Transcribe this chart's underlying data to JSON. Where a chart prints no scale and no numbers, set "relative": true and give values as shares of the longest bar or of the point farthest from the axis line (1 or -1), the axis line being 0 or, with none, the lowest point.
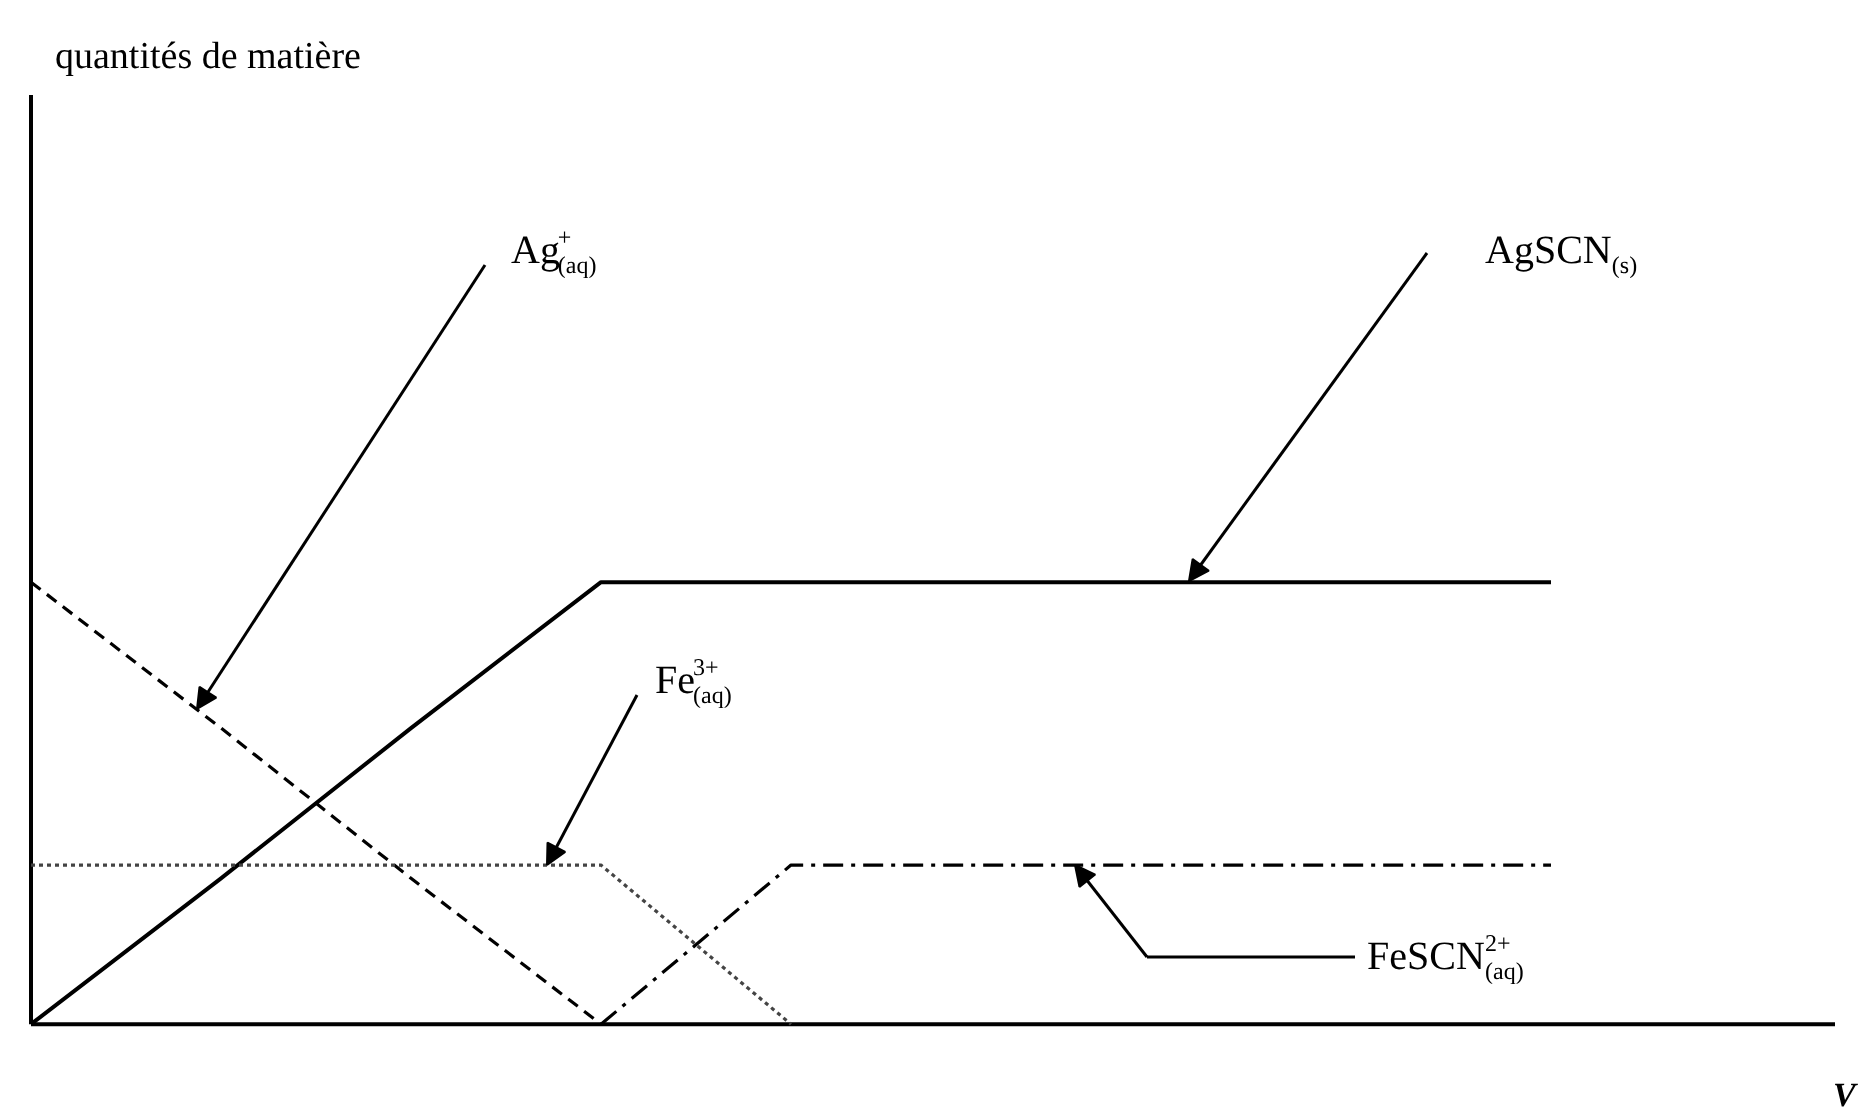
{
  "chart_data": {
    "type": "line",
    "relative": true,
    "grid": false,
    "categories": [
      null,
      null,
      null,
      null,
      null,
      null,
      null,
      null,
      null
    ],
    "series": [
      {
        "color": "#000000",
        "line_style": "dashed",
        "values": [
          1,
          0.67,
          0.33,
          0,
          null,
          null,
          null,
          null,
          null
        ]
      },
      {
        "color": "#000000",
        "line_style": "solid",
        "values": [
          0,
          0.33,
          0.67,
          1,
          1,
          1,
          1,
          1,
          1
        ]
      },
      {
        "color": "#444444",
        "line_style": "dotted",
        "values": [
          0.36,
          0.36,
          0.36,
          0.36,
          0,
          null,
          null,
          null,
          null
        ]
      },
      {
        "color": "#000000",
        "line_style": "dashdot",
        "values": [
          null,
          null,
          null,
          0,
          0.36,
          0.36,
          0.36,
          0.36,
          0.36
        ]
      }
    ],
    "annotations": [
      "quantités de matière",
      "Ag$^{+}$$_{(aq)}$",
      "AgSCN$_{(s)}$",
      "Fe$^{3+}$$_{(aq)}$",
      "FeSCN$^{2+}$$_{(aq)}$",
      "V"
    ]
  }
}
